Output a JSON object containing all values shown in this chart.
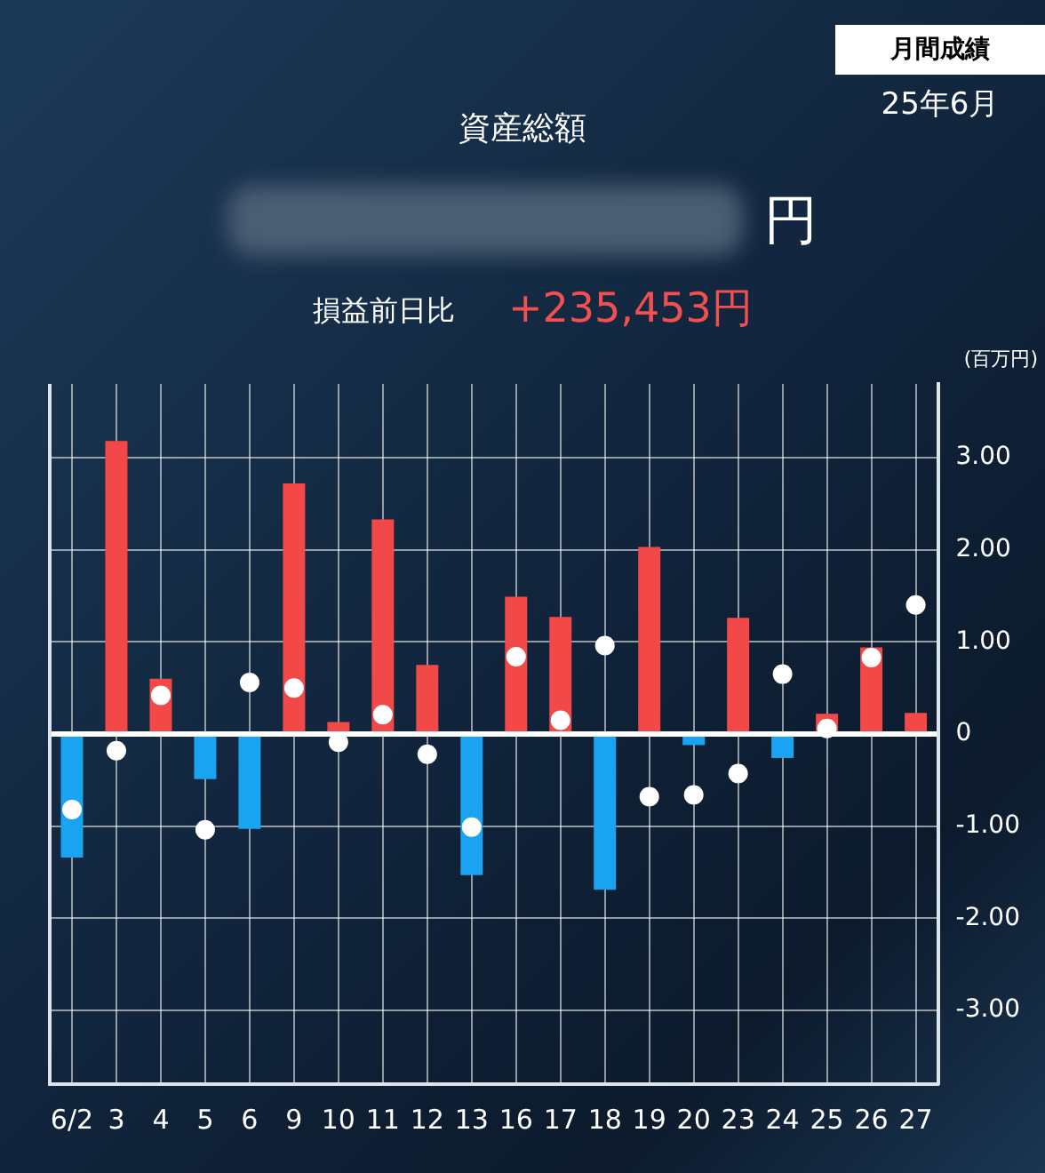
{
  "chart_data": {
    "type": "bar",
    "title": "資産総額",
    "ylabel": "(百万円)",
    "annotations": [
      "月間成績",
      "25年6月",
      "円",
      "損益前日比",
      "+235,453円"
    ],
    "categories": [
      "6/2",
      "3",
      "4",
      "5",
      "6",
      "9",
      "10",
      "11",
      "12",
      "13",
      "16",
      "17",
      "18",
      "19",
      "20",
      "23",
      "24",
      "25",
      "26",
      "27"
    ],
    "series": [
      {
        "colors": [
          "#1aa3f0",
          "#f24848",
          "#f24848",
          "#1aa3f0",
          "#1aa3f0",
          "#f24848",
          "#f24848",
          "#f24848",
          "#f24848",
          "#1aa3f0",
          "#f24848",
          "#f24848",
          "#1aa3f0",
          "#f24848",
          "#1aa3f0",
          "#f24848",
          "#1aa3f0",
          "#f24848",
          "#f24848",
          "#f24848"
        ],
        "values": [
          -1.34,
          3.18,
          0.6,
          -0.49,
          -1.03,
          2.72,
          0.13,
          2.33,
          0.75,
          -1.53,
          1.49,
          1.27,
          -1.69,
          2.03,
          -0.12,
          1.26,
          -0.26,
          0.22,
          0.94,
          0.23
        ]
      },
      {
        "type": "scatter",
        "color": "#ffffff",
        "x": [
          "6/2",
          "3",
          "4",
          "5",
          "6",
          "9",
          "10",
          "11",
          "12",
          "13",
          "16",
          "17",
          "18",
          "19",
          "20",
          "23",
          "24",
          "25",
          "26",
          "27"
        ],
        "values": [
          -0.82,
          -0.18,
          0.42,
          -1.04,
          0.56,
          0.5,
          -0.09,
          0.21,
          -0.22,
          -1.01,
          0.84,
          0.15,
          0.96,
          -0.68,
          -0.66,
          -0.43,
          0.65,
          0.06,
          0.83,
          1.4
        ]
      }
    ],
    "ylim": [
      -3.8,
      3.8
    ],
    "yticks": [
      {
        "value": 3,
        "label": "3.00"
      },
      {
        "value": 2,
        "label": "2.00"
      },
      {
        "value": 1,
        "label": "1.00"
      },
      0,
      {
        "value": -1,
        "label": "-1.00"
      },
      {
        "value": -2,
        "label": "-2.00"
      },
      {
        "value": -3,
        "label": "-3.00"
      }
    ],
    "grid": true,
    "marker": "circle"
  }
}
